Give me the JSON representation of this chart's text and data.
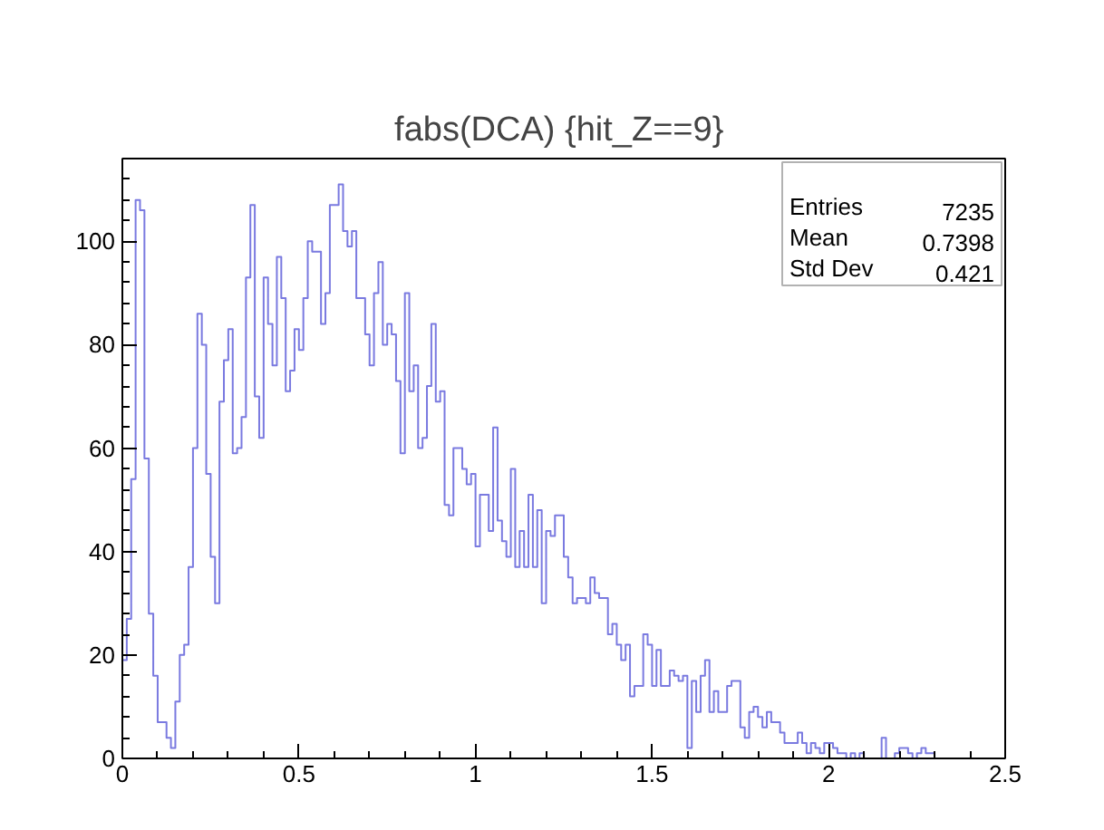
{
  "chart_data": {
    "type": "histogram",
    "title": "fabs(DCA)  {hit_Z==9}",
    "bins": [
      0,
      0.0125,
      0.025,
      0.0375,
      0.05,
      0.0625,
      0.075,
      0.0875,
      0.1,
      0.1125,
      0.125,
      0.1375,
      0.15,
      0.1625,
      0.175,
      0.1875,
      0.2,
      0.2125,
      0.225,
      0.2375,
      0.25,
      0.2625,
      0.275,
      0.2875,
      0.3,
      0.3125,
      0.325,
      0.3375,
      0.35,
      0.3625,
      0.375,
      0.3875,
      0.4,
      0.4125,
      0.425,
      0.4375,
      0.45,
      0.4625,
      0.475,
      0.4875,
      0.5,
      0.5125,
      0.525,
      0.5375,
      0.55,
      0.5625,
      0.575,
      0.5875,
      0.6,
      0.6125,
      0.625,
      0.6375,
      0.65,
      0.6625,
      0.675,
      0.6875,
      0.7,
      0.7125,
      0.725,
      0.7375,
      0.75,
      0.7625,
      0.775,
      0.7875,
      0.8,
      0.8125,
      0.825,
      0.8375,
      0.85,
      0.8625,
      0.875,
      0.8875,
      0.9,
      0.9125,
      0.925,
      0.9375,
      0.95,
      0.9625,
      0.975,
      0.9875,
      1,
      1.0125,
      1.025,
      1.0375,
      1.05,
      1.0625,
      1.075,
      1.0875,
      1.1,
      1.1125,
      1.125,
      1.1375,
      1.15,
      1.1625,
      1.175,
      1.1875,
      1.2,
      1.2125,
      1.225,
      1.2375,
      1.25,
      1.2625,
      1.275,
      1.2875,
      1.3,
      1.3125,
      1.325,
      1.3375,
      1.35,
      1.3625,
      1.375,
      1.3875,
      1.4,
      1.4125,
      1.425,
      1.4375,
      1.45,
      1.4625,
      1.475,
      1.4875,
      1.5,
      1.5125,
      1.525,
      1.5375,
      1.55,
      1.5625,
      1.575,
      1.5875,
      1.6,
      1.6125,
      1.625,
      1.6375,
      1.65,
      1.6625,
      1.675,
      1.6875,
      1.7,
      1.7125,
      1.725,
      1.7375,
      1.75,
      1.7625,
      1.775,
      1.7875,
      1.8,
      1.8125,
      1.825,
      1.8375,
      1.85,
      1.8625,
      1.875,
      1.8875,
      1.9,
      1.9125,
      1.925,
      1.9375,
      1.95,
      1.9625,
      1.975,
      1.9875,
      2,
      2.0125,
      2.025,
      2.0375,
      2.05,
      2.0625,
      2.075,
      2.0875,
      2.1,
      2.1125,
      2.125,
      2.1375,
      2.15,
      2.1625,
      2.175,
      2.1875,
      2.2,
      2.2125,
      2.225,
      2.2375,
      2.25,
      2.2625,
      2.275,
      2.2875,
      2.3
    ],
    "values": [
      19,
      27,
      54,
      108,
      106,
      58,
      28,
      16,
      7,
      7,
      4,
      2,
      11,
      20,
      22,
      37,
      60,
      86,
      80,
      55,
      39,
      30,
      69,
      77,
      83,
      59,
      60,
      66,
      93,
      107,
      70,
      62,
      93,
      84,
      76,
      97,
      89,
      71,
      75,
      83,
      79,
      89,
      100,
      98,
      98,
      84,
      90,
      107,
      107,
      111,
      102,
      99,
      102,
      89,
      89,
      82,
      76,
      90,
      96,
      80,
      84,
      82,
      73,
      59,
      90,
      71,
      76,
      60,
      62,
      72,
      84,
      69,
      71,
      49,
      47,
      60,
      60,
      56,
      53,
      55,
      41,
      51,
      51,
      44,
      64,
      46,
      42,
      39,
      56,
      37,
      44,
      37,
      51,
      37,
      48,
      30,
      44,
      43,
      47,
      47,
      39,
      35,
      30,
      31,
      31,
      30,
      35,
      32,
      31,
      31,
      24,
      26,
      22,
      19,
      22,
      12,
      14,
      14,
      24,
      22,
      14,
      21,
      14,
      14,
      17,
      16,
      15,
      16,
      2,
      15,
      9,
      16,
      19,
      9,
      13,
      9,
      9,
      14,
      15,
      15,
      6,
      4,
      9,
      10,
      8,
      6,
      9,
      7,
      7,
      5,
      3,
      3,
      3,
      5,
      3,
      1,
      3,
      2,
      1,
      3,
      3,
      2,
      1,
      1,
      0,
      1,
      0,
      1,
      0,
      0,
      0,
      0,
      4,
      0,
      0,
      1,
      2,
      2,
      1,
      0,
      1,
      2,
      1,
      1
    ],
    "color": "#7a7ae0",
    "xlim": [
      0,
      2.5
    ],
    "ylim": [
      0,
      116
    ],
    "xticks": [
      0,
      {
        "value": 0.1,
        "label": null
      },
      {
        "value": 0.2,
        "label": null
      },
      {
        "value": 0.3,
        "label": null
      },
      {
        "value": 0.4,
        "label": null
      },
      0.5,
      {
        "value": 0.6,
        "label": null
      },
      {
        "value": 0.7,
        "label": null
      },
      {
        "value": 0.8,
        "label": null
      },
      {
        "value": 0.9,
        "label": null
      },
      1,
      {
        "value": 1.1,
        "label": null
      },
      {
        "value": 1.2,
        "label": null
      },
      {
        "value": 1.3,
        "label": null
      },
      {
        "value": 1.4,
        "label": null
      },
      1.5,
      {
        "value": 1.6,
        "label": null
      },
      {
        "value": 1.7,
        "label": null
      },
      {
        "value": 1.8,
        "label": null
      },
      {
        "value": 1.9,
        "label": null
      },
      2,
      {
        "value": 2.1,
        "label": null
      },
      {
        "value": 2.2,
        "label": null
      },
      {
        "value": 2.3,
        "label": null
      },
      {
        "value": 2.4,
        "label": null
      },
      2.5
    ],
    "yticks": [
      0,
      {
        "value": 4,
        "label": null
      },
      {
        "value": 8,
        "label": null
      },
      {
        "value": 12,
        "label": null
      },
      {
        "value": 16,
        "label": null
      },
      20,
      {
        "value": 24,
        "label": null
      },
      {
        "value": 28,
        "label": null
      },
      {
        "value": 32,
        "label": null
      },
      {
        "value": 36,
        "label": null
      },
      40,
      {
        "value": 44,
        "label": null
      },
      {
        "value": 48,
        "label": null
      },
      {
        "value": 52,
        "label": null
      },
      {
        "value": 56,
        "label": null
      },
      60,
      {
        "value": 64,
        "label": null
      },
      {
        "value": 68,
        "label": null
      },
      {
        "value": 72,
        "label": null
      },
      {
        "value": 76,
        "label": null
      },
      80,
      {
        "value": 84,
        "label": null
      },
      {
        "value": 88,
        "label": null
      },
      {
        "value": 92,
        "label": null
      },
      {
        "value": 96,
        "label": null
      },
      100,
      {
        "value": 104,
        "label": null
      },
      {
        "value": 108,
        "label": null
      },
      {
        "value": 112,
        "label": null
      }
    ],
    "annotations": [
      "Entries 7235",
      "Mean 0.7398",
      "Std Dev 0.421"
    ]
  }
}
